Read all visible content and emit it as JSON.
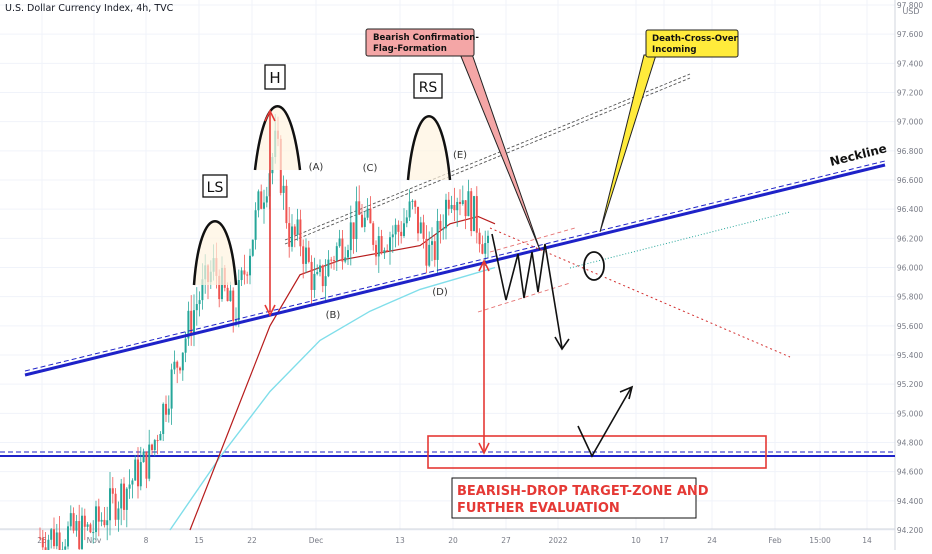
{
  "header": {
    "symbol_line": "U.S. Dollar Currency Index, 4h, TVC",
    "currency": "USD"
  },
  "chart_data": {
    "type": "candlestick",
    "title": "U.S. Dollar Currency Index, 4h, TVC",
    "y_unit": "USD",
    "ylim": [
      94.15,
      97.9
    ],
    "y_ticks": [
      "97.800",
      "97.600",
      "97.400",
      "97.200",
      "97.000",
      "96.800",
      "96.600",
      "96.400",
      "96.200",
      "96.000",
      "95.800",
      "95.600",
      "95.400",
      "95.200",
      "95.000",
      "94.800",
      "94.600",
      "94.400",
      "94.200"
    ],
    "x_ticks": [
      "25",
      "Nov",
      "8",
      "15",
      "22",
      "Dec",
      "13",
      "20",
      "27",
      "2022",
      "10",
      "17",
      "24",
      "Feb",
      "15:00",
      "14"
    ],
    "grid": true,
    "price_path": [
      [
        "Oct 25",
        94.15
      ],
      [
        "Nov 5",
        94.2
      ],
      [
        "Nov 10",
        94.7
      ],
      [
        "Nov 12",
        95.2
      ],
      [
        "Nov 15",
        95.75
      ],
      [
        "Nov 17",
        96.0
      ],
      [
        "Nov 19",
        95.65
      ],
      [
        "Nov 22",
        96.4
      ],
      [
        "Nov 24",
        96.85
      ],
      [
        "Nov 26",
        96.2
      ],
      [
        "Nov 29",
        96.2
      ],
      [
        "Dec 1",
        95.85
      ],
      [
        "Dec 3",
        96.1
      ],
      [
        "Dec 7",
        96.35
      ],
      [
        "Dec 9",
        96.2
      ],
      [
        "Dec 13",
        96.25
      ],
      [
        "Dec 15",
        96.4
      ],
      [
        "Dec 16",
        96.05
      ],
      [
        "Dec 17",
        96.55
      ],
      [
        "Dec 20",
        96.5
      ],
      [
        "Dec 22",
        96.3
      ],
      [
        "Dec 23",
        96.05
      ]
    ],
    "annotations": {
      "ls": "LS",
      "h": "H",
      "rs": "RS",
      "point_a": "(A)",
      "point_b": "(B)",
      "point_c": "(C)",
      "point_d": "(D)",
      "point_e": "(E)",
      "neckline": "Neckline",
      "flag_callout": [
        "Bearish Confirmation-",
        "Flag-Formation"
      ],
      "death_cross_callout": [
        "Death-Cross-Over",
        "Incoming"
      ],
      "target_zone": [
        "BEARISH-DROP TARGET-ZONE AND",
        "FURTHER EVALUATION"
      ]
    },
    "colors": {
      "candle_up": "#26a69a",
      "candle_down": "#ef5350",
      "neckline": "#1e22c8",
      "ma_fast": "#b71c1c",
      "ma_slow": "#80deea",
      "target_box": "#e53935",
      "flag_callout_fill": "#f4a6a6",
      "death_cross_fill": "#ffeb3b"
    }
  }
}
